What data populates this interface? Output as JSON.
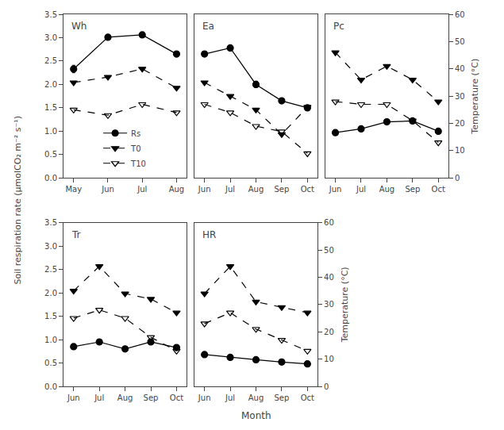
{
  "chart_data": [
    {
      "type": "line",
      "title": "Wh",
      "categories": [
        "May",
        "Jun",
        "Jul",
        "Aug"
      ],
      "series": [
        {
          "name": "Rs",
          "values": [
            2.33,
            3.01,
            3.06,
            2.65
          ],
          "errors": [
            0.08,
            0.05,
            0.04,
            0.06
          ],
          "color": "black",
          "marker": "circle",
          "line_style": "solid"
        },
        {
          "name": "T0",
          "values": [
            35,
            37,
            40,
            33
          ],
          "axis": "y2",
          "color": "black",
          "marker": "triangle-down",
          "line_style": "dashed"
        },
        {
          "name": "T10",
          "values": [
            25,
            23,
            27,
            24
          ],
          "axis": "y2",
          "color": "black",
          "marker": "triangle-down-open",
          "line_style": "dashed"
        }
      ],
      "ylim": [
        0.0,
        3.5
      ],
      "yticks": [
        {
          "value": 0.0,
          "label": "0.0"
        },
        0.5,
        {
          "value": 1.0,
          "label": "1.0"
        },
        1.5,
        {
          "value": 2.0,
          "label": "2.0"
        },
        2.5,
        {
          "value": 3.0,
          "label": "3.0"
        },
        3.5
      ],
      "y2lim": [
        0,
        60
      ],
      "ylabel": "Soil respiration rate (μmolCO₂ m⁻² s⁻¹)",
      "legend": "lower center",
      "grid": false
    },
    {
      "type": "line",
      "title": "Ea",
      "categories": [
        "Jun",
        "Jul",
        "Aug",
        "Sep",
        "Oct"
      ],
      "series": [
        {
          "name": "Rs",
          "values": [
            2.65,
            2.78,
            2.0,
            1.65,
            1.5
          ],
          "errors": [
            0.05,
            0.06,
            0.07,
            0.05,
            0.04
          ],
          "color": "black",
          "marker": "circle",
          "line_style": "solid"
        },
        {
          "name": "T0",
          "values": [
            35,
            30,
            25,
            16,
            26
          ],
          "axis": "y2",
          "color": "black",
          "marker": "triangle-down",
          "line_style": "dashed"
        },
        {
          "name": "T10",
          "values": [
            27,
            24,
            19,
            17,
            9
          ],
          "axis": "y2",
          "color": "black",
          "marker": "triangle-down-open",
          "line_style": "dashed"
        }
      ],
      "ylim": [
        0.0,
        3.5
      ],
      "y2lim": [
        0,
        60
      ],
      "grid": false
    },
    {
      "type": "line",
      "title": "Pc",
      "categories": [
        "Jun",
        "Jul",
        "Aug",
        "Sep",
        "Oct"
      ],
      "series": [
        {
          "name": "Rs",
          "values": [
            0.97,
            1.05,
            1.2,
            1.22,
            1.0
          ],
          "errors": [
            0.04,
            0.05,
            0.05,
            0.04,
            0.04
          ],
          "color": "black",
          "marker": "circle",
          "line_style": "solid"
        },
        {
          "name": "T0",
          "values": [
            46,
            36,
            41,
            36,
            28
          ],
          "axis": "y2",
          "color": "black",
          "marker": "triangle-down",
          "line_style": "dashed"
        },
        {
          "name": "T10",
          "values": [
            28,
            27,
            27,
            21,
            13
          ],
          "axis": "y2",
          "color": "black",
          "marker": "triangle-down-open",
          "line_style": "dashed"
        }
      ],
      "ylim": [
        0.0,
        3.5
      ],
      "y2lim": [
        0,
        60
      ],
      "y2ticks": [
        0,
        10,
        20,
        30,
        40,
        50,
        60
      ],
      "y2label": "Temperature (°C)",
      "grid": false
    },
    {
      "type": "line",
      "title": "Tr",
      "categories": [
        "Jun",
        "Jul",
        "Aug",
        "Sep",
        "Oct"
      ],
      "series": [
        {
          "name": "Rs",
          "values": [
            0.85,
            0.95,
            0.8,
            0.95,
            0.83
          ],
          "errors": [
            0.04,
            0.05,
            0.04,
            0.05,
            0.04
          ],
          "color": "black",
          "marker": "circle",
          "line_style": "solid"
        },
        {
          "name": "T0",
          "values": [
            35,
            44,
            34,
            32,
            27
          ],
          "axis": "y2",
          "color": "black",
          "marker": "triangle-down",
          "line_style": "dashed"
        },
        {
          "name": "T10",
          "values": [
            25,
            28,
            25,
            18,
            13
          ],
          "axis": "y2",
          "color": "black",
          "marker": "triangle-down-open",
          "line_style": "dashed"
        }
      ],
      "ylim": [
        0.0,
        3.5
      ],
      "yticks": [
        {
          "value": 0.0,
          "label": "0.0"
        },
        0.5,
        {
          "value": 1.0,
          "label": "1.0"
        },
        1.5,
        {
          "value": 2.0,
          "label": "2.0"
        },
        2.5,
        {
          "value": 3.0,
          "label": "3.0"
        },
        3.5
      ],
      "y2lim": [
        0,
        60
      ],
      "xlabel": "Month",
      "grid": false
    },
    {
      "type": "line",
      "title": "HR",
      "categories": [
        "Jun",
        "Jul",
        "Aug",
        "Sep",
        "Oct"
      ],
      "series": [
        {
          "name": "Rs",
          "values": [
            0.68,
            0.62,
            0.57,
            0.52,
            0.48
          ],
          "errors": [
            0.04,
            0.03,
            0.03,
            0.03,
            0.03
          ],
          "color": "black",
          "marker": "circle",
          "line_style": "solid"
        },
        {
          "name": "T0",
          "values": [
            34,
            44,
            31,
            29,
            27
          ],
          "axis": "y2",
          "color": "black",
          "marker": "triangle-down",
          "line_style": "dashed"
        },
        {
          "name": "T10",
          "values": [
            23,
            27,
            21,
            17,
            13
          ],
          "axis": "y2",
          "color": "black",
          "marker": "triangle-down-open",
          "line_style": "dashed"
        }
      ],
      "ylim": [
        0.0,
        3.5
      ],
      "y2lim": [
        0,
        60
      ],
      "y2ticks": [
        0,
        10,
        20,
        30,
        40,
        50,
        60
      ],
      "y2label": "Temperature (°C)",
      "grid": false
    }
  ]
}
